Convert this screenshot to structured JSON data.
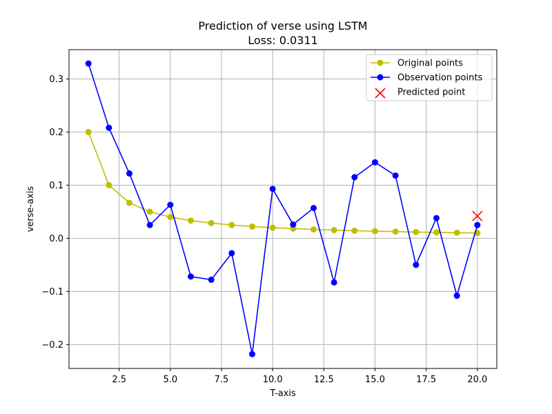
{
  "chart_data": {
    "type": "line",
    "title": "Prediction of verse using LSTM",
    "subtitle": "Loss: 0.0311",
    "xlabel": "T-axis",
    "ylabel": "verse-axis",
    "xlim": [
      0.05,
      20.95
    ],
    "ylim": [
      -0.245,
      0.355
    ],
    "xticks": [
      2.5,
      5.0,
      7.5,
      10.0,
      12.5,
      15.0,
      17.5,
      20.0
    ],
    "xtick_labels": [
      "2.5",
      "5.0",
      "7.5",
      "10.0",
      "12.5",
      "15.0",
      "17.5",
      "20.0"
    ],
    "yticks": [
      -0.2,
      -0.1,
      0.0,
      0.1,
      0.2,
      0.3
    ],
    "ytick_labels": [
      "−0.2",
      "−0.1",
      "0.0",
      "0.1",
      "0.2",
      "0.3"
    ],
    "grid": true,
    "legend_position": "top-right",
    "series": [
      {
        "name": "Original points",
        "color": "#bfbf00",
        "marker": "circle",
        "x": [
          1,
          2,
          3,
          4,
          5,
          6,
          7,
          8,
          9,
          10,
          11,
          12,
          13,
          14,
          15,
          16,
          17,
          18,
          19,
          20
        ],
        "y": [
          0.2,
          0.1,
          0.0667,
          0.05,
          0.04,
          0.0333,
          0.0286,
          0.025,
          0.0222,
          0.02,
          0.0182,
          0.0167,
          0.0154,
          0.0143,
          0.0133,
          0.0125,
          0.0118,
          0.0111,
          0.0105,
          0.01
        ]
      },
      {
        "name": "Observation points",
        "color": "#0000ff",
        "marker": "circle",
        "x": [
          1,
          2,
          3,
          4,
          5,
          6,
          7,
          8,
          9,
          10,
          11,
          12,
          13,
          14,
          15,
          16,
          17,
          18,
          19,
          20
        ],
        "y": [
          0.329,
          0.208,
          0.122,
          0.025,
          0.063,
          -0.072,
          -0.078,
          -0.028,
          -0.218,
          0.093,
          0.026,
          0.057,
          -0.083,
          0.115,
          0.143,
          0.118,
          -0.05,
          0.038,
          -0.108,
          0.025
        ]
      },
      {
        "name": "Predicted point",
        "color": "#ff0000",
        "marker": "x",
        "x": [
          20
        ],
        "y": [
          0.042
        ]
      }
    ]
  }
}
